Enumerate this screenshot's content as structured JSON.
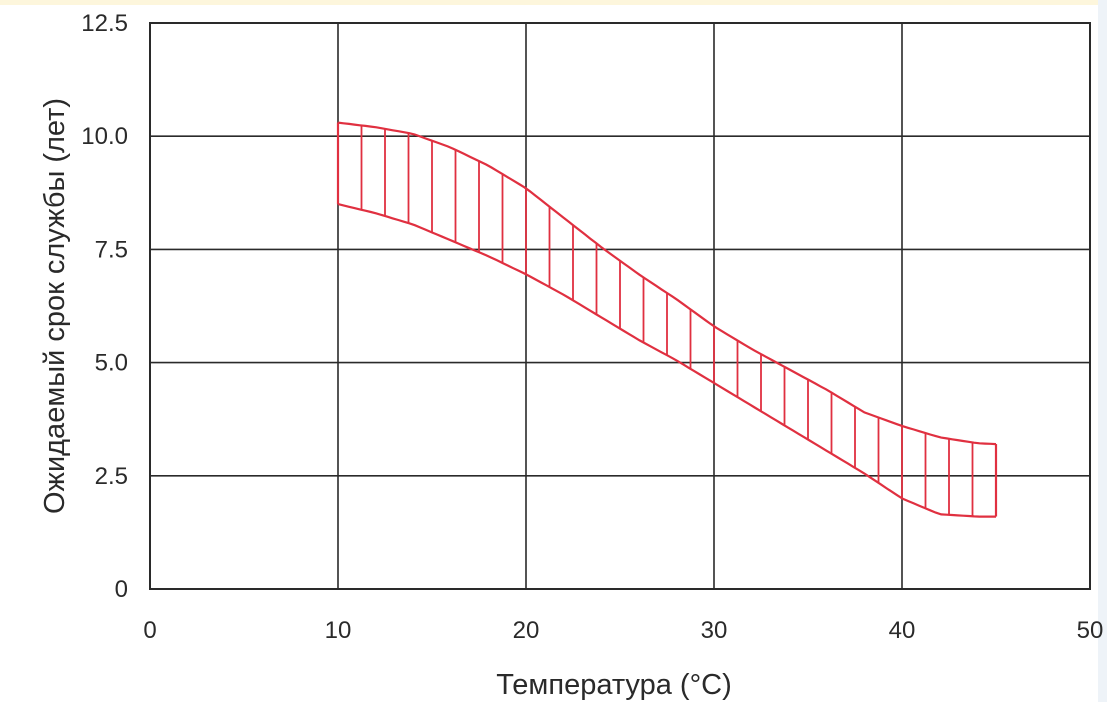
{
  "chart_data": {
    "type": "area",
    "xlabel": "Температура (°С)",
    "ylabel": "Ожидаемый срок службы (лет)",
    "xlim": [
      0,
      50
    ],
    "ylim": [
      0,
      12.5
    ],
    "xticks": [
      "0",
      "10",
      "20",
      "30",
      "40",
      "50"
    ],
    "yticks": [
      "0",
      "2.5",
      "5.0",
      "7.5",
      "10.0",
      "12.5"
    ],
    "grid": true,
    "band_color": "#e03040",
    "series": [
      {
        "role": "upper",
        "x": [
          10,
          12,
          14,
          16,
          18,
          20,
          22,
          24,
          26,
          28,
          30,
          32,
          34,
          36,
          38,
          40,
          42,
          44,
          45
        ],
        "values": [
          10.3,
          10.2,
          10.05,
          9.75,
          9.35,
          8.85,
          8.2,
          7.55,
          6.95,
          6.4,
          5.8,
          5.3,
          4.85,
          4.4,
          3.9,
          3.6,
          3.35,
          3.22,
          3.2
        ]
      },
      {
        "role": "lower",
        "x": [
          10,
          12,
          14,
          16,
          18,
          20,
          22,
          24,
          26,
          28,
          30,
          32,
          34,
          36,
          38,
          40,
          42,
          44,
          45
        ],
        "values": [
          8.5,
          8.3,
          8.05,
          7.7,
          7.35,
          6.95,
          6.5,
          6.0,
          5.5,
          5.05,
          4.55,
          4.05,
          3.55,
          3.05,
          2.55,
          2.0,
          1.65,
          1.6,
          1.6
        ]
      }
    ]
  }
}
